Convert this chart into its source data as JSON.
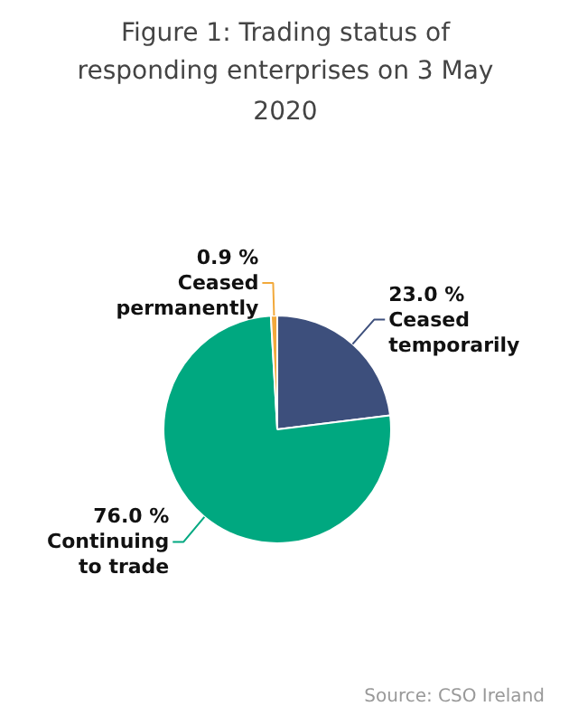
{
  "chart_data": {
    "type": "pie",
    "title": "Figure 1: Trading status of responding enterprises on 3 May 2020",
    "categories": [
      "Ceased temporarily",
      "Continuing to trade",
      "Ceased permanently"
    ],
    "values": [
      23.0,
      76.0,
      0.9
    ],
    "colors": [
      "#3d4f7c",
      "#00a880",
      "#f2a93b"
    ],
    "value_labels": [
      "23.0 %",
      "76.0 %",
      "0.9 %"
    ],
    "annotations": [
      "Source: CSO Ireland"
    ]
  }
}
